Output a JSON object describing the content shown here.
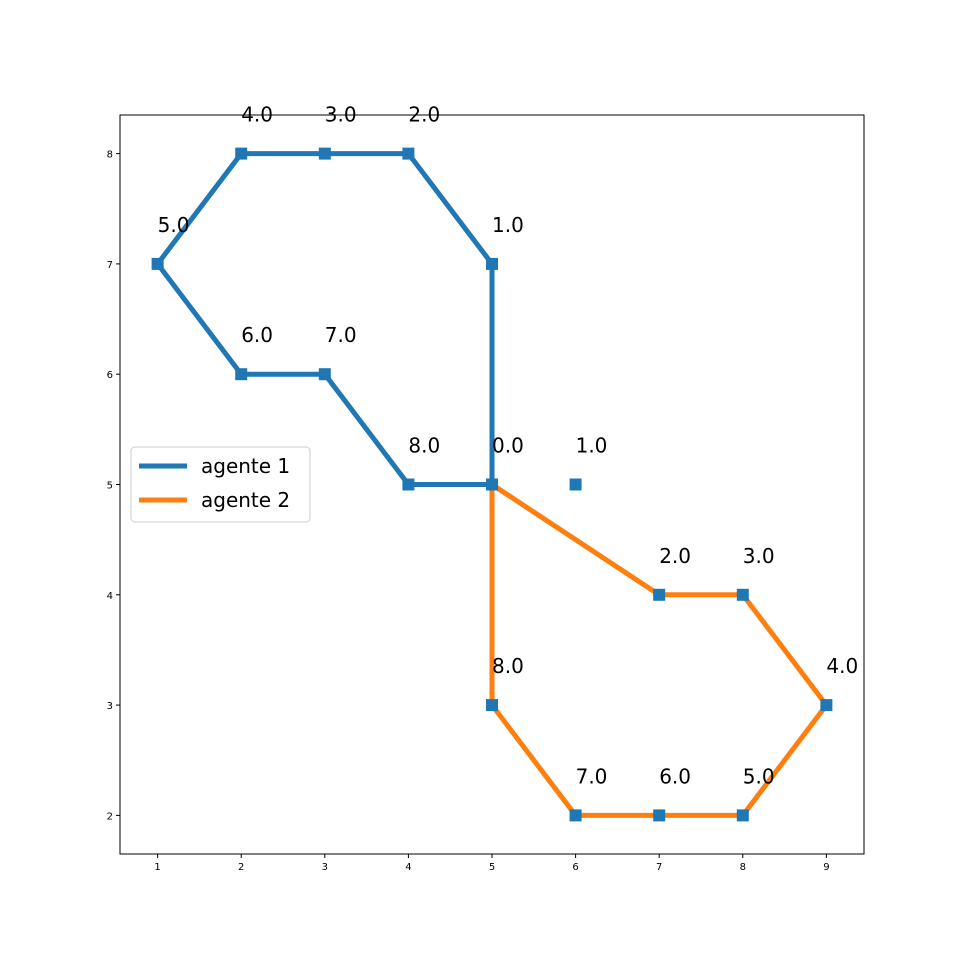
{
  "chart_data": {
    "type": "line",
    "title": "",
    "xlabel": "",
    "ylabel": "",
    "xlim": [
      0.55,
      9.45
    ],
    "ylim": [
      1.65,
      8.35
    ],
    "xticks": [
      1,
      2,
      3,
      4,
      5,
      6,
      7,
      8,
      9
    ],
    "yticks": [
      2,
      3,
      4,
      5,
      6,
      7,
      8
    ],
    "grid": false,
    "legend_position": "center-left",
    "series": [
      {
        "name": "agente 1",
        "color": "#1f77b4",
        "points": [
          {
            "x": 5,
            "y": 5,
            "label": "0.0"
          },
          {
            "x": 5,
            "y": 7,
            "label": "1.0"
          },
          {
            "x": 4,
            "y": 8,
            "label": "2.0"
          },
          {
            "x": 3,
            "y": 8,
            "label": "3.0"
          },
          {
            "x": 2,
            "y": 8,
            "label": "4.0"
          },
          {
            "x": 1,
            "y": 7,
            "label": "5.0"
          },
          {
            "x": 2,
            "y": 6,
            "label": "6.0"
          },
          {
            "x": 3,
            "y": 6,
            "label": "7.0"
          },
          {
            "x": 4,
            "y": 5,
            "label": "8.0"
          },
          {
            "x": 5,
            "y": 5,
            "label": ""
          }
        ]
      },
      {
        "name": "agente 2",
        "color": "#ff7f0e",
        "points": [
          {
            "x": 5,
            "y": 5,
            "label": ""
          },
          {
            "x": 7,
            "y": 4,
            "label": "2.0"
          },
          {
            "x": 8,
            "y": 4,
            "label": "3.0"
          },
          {
            "x": 9,
            "y": 3,
            "label": "4.0"
          },
          {
            "x": 8,
            "y": 2,
            "label": "5.0"
          },
          {
            "x": 7,
            "y": 2,
            "label": "6.0"
          },
          {
            "x": 6,
            "y": 2,
            "label": "7.0"
          },
          {
            "x": 5,
            "y": 3,
            "label": "8.0"
          },
          {
            "x": 5,
            "y": 5,
            "label": ""
          }
        ]
      }
    ],
    "extra_markers": [
      {
        "x": 6,
        "y": 5,
        "label": "1.0",
        "color": "#1f77b4"
      }
    ]
  }
}
